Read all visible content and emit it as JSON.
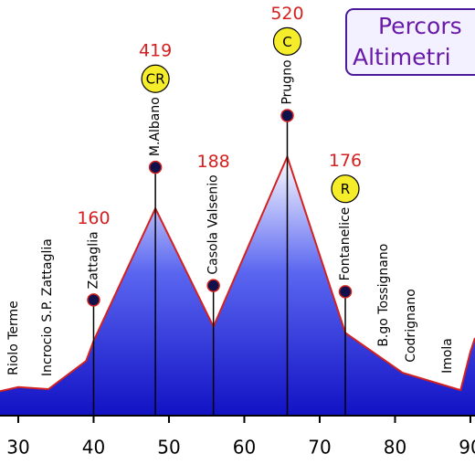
{
  "chart_data": {
    "type": "area",
    "title_lines": [
      "Percors",
      "Altimetri"
    ],
    "profile": {
      "x": [
        27.58,
        30,
        34,
        39,
        40,
        48.2,
        55.9,
        65.7,
        73.4,
        81,
        88.7,
        90,
        90.61
      ],
      "values": [
        62,
        70,
        66,
        121,
        160,
        419,
        188,
        520,
        176,
        98,
        64,
        139,
        166
      ]
    },
    "places": [
      {
        "name": "Riolo Terme",
        "km": 29.4
      },
      {
        "name": "Incrocio S.P. Zattaglia",
        "km": 33.9
      },
      {
        "name": "Zattaglia",
        "km": 40,
        "elevation": 160
      },
      {
        "name": "M.Albano",
        "km": 48.2,
        "elevation": 419,
        "badge": "CR"
      },
      {
        "name": "Casola Valsenio",
        "km": 55.9,
        "elevation": 188
      },
      {
        "name": "Prugno",
        "km": 65.7,
        "elevation": 520,
        "badge": "C"
      },
      {
        "name": "Fontanelice",
        "km": 73.4,
        "elevation": 176,
        "badge": "R"
      },
      {
        "name": "B.go Tossignano",
        "km": 78.5
      },
      {
        "name": "Codrignano",
        "km": 82.1
      },
      {
        "name": "Imola",
        "km": 87
      }
    ],
    "xlim": [
      27.58,
      90.61
    ],
    "ylim": [
      0,
      826
    ],
    "xticks": [
      30,
      40,
      50,
      60,
      70,
      80,
      90
    ],
    "line_color": "#d42020",
    "fill_color": "#1212c4",
    "marker_color": "#10104a",
    "badge_color": "#f5ec2a",
    "label_color": "#d42020"
  }
}
